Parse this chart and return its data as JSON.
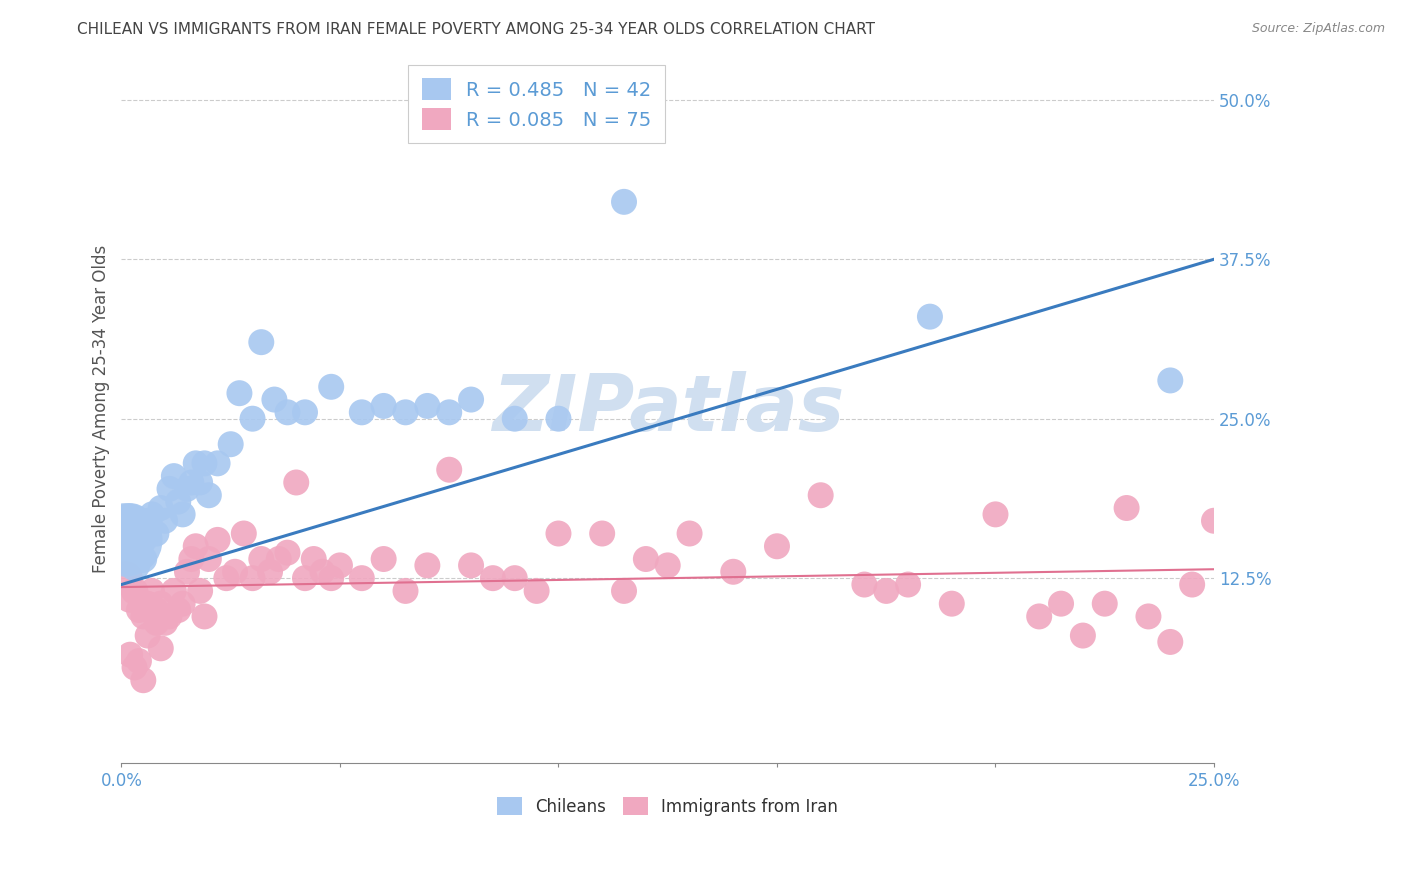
{
  "title": "CHILEAN VS IMMIGRANTS FROM IRAN FEMALE POVERTY AMONG 25-34 YEAR OLDS CORRELATION CHART",
  "source": "Source: ZipAtlas.com",
  "ylabel": "Female Poverty Among 25-34 Year Olds",
  "xlim": [
    0.0,
    0.25
  ],
  "ylim": [
    -0.02,
    0.535
  ],
  "xticks": [
    0.0,
    0.05,
    0.1,
    0.15,
    0.2,
    0.25
  ],
  "xtick_labels_show": {
    "0.0": "0.0%",
    "0.25": "25.0%"
  },
  "yticks": [
    0.125,
    0.25,
    0.375,
    0.5
  ],
  "ytick_labels": [
    "12.5%",
    "25.0%",
    "37.5%",
    "50.0%"
  ],
  "legend_entries": [
    {
      "label": "R = 0.485   N = 42",
      "color": "#a8c8f0"
    },
    {
      "label": "R = 0.085   N = 75",
      "color": "#f0a8c0"
    }
  ],
  "chilean_color": "#a8c8f0",
  "iran_color": "#f0a8c0",
  "blue_line_color": "#3a7bbf",
  "pink_line_color": "#e07090",
  "watermark": "ZIPatlas",
  "watermark_color": "#d0dff0",
  "background_color": "#ffffff",
  "grid_color": "#cccccc",
  "title_color": "#444444",
  "axis_label_color": "#555555",
  "tick_label_color": "#5b9bd5",
  "source_color": "#888888",
  "blue_line_x": [
    0.0,
    0.25
  ],
  "blue_line_y": [
    0.12,
    0.375
  ],
  "pink_line_x": [
    0.0,
    0.25
  ],
  "pink_line_y": [
    0.118,
    0.132
  ],
  "chileans_x": [
    0.001,
    0.002,
    0.003,
    0.003,
    0.004,
    0.005,
    0.005,
    0.006,
    0.007,
    0.008,
    0.009,
    0.01,
    0.011,
    0.012,
    0.013,
    0.014,
    0.015,
    0.016,
    0.017,
    0.018,
    0.019,
    0.02,
    0.022,
    0.025,
    0.027,
    0.03,
    0.032,
    0.035,
    0.038,
    0.042,
    0.048,
    0.055,
    0.06,
    0.065,
    0.07,
    0.075,
    0.08,
    0.09,
    0.1,
    0.115,
    0.185,
    0.24
  ],
  "chileans_y": [
    0.155,
    0.165,
    0.145,
    0.135,
    0.16,
    0.155,
    0.14,
    0.17,
    0.175,
    0.16,
    0.18,
    0.17,
    0.195,
    0.205,
    0.185,
    0.175,
    0.195,
    0.2,
    0.215,
    0.2,
    0.215,
    0.19,
    0.215,
    0.23,
    0.27,
    0.25,
    0.31,
    0.265,
    0.255,
    0.255,
    0.275,
    0.255,
    0.26,
    0.255,
    0.26,
    0.255,
    0.265,
    0.25,
    0.25,
    0.42,
    0.33,
    0.28
  ],
  "chileans_size": [
    280,
    120,
    60,
    50,
    50,
    40,
    40,
    35,
    35,
    35,
    35,
    35,
    35,
    35,
    35,
    35,
    35,
    35,
    35,
    35,
    35,
    35,
    35,
    35,
    35,
    35,
    35,
    35,
    35,
    35,
    35,
    35,
    35,
    35,
    35,
    35,
    35,
    35,
    35,
    35,
    35,
    35
  ],
  "iran_x": [
    0.001,
    0.002,
    0.003,
    0.004,
    0.005,
    0.006,
    0.007,
    0.008,
    0.009,
    0.01,
    0.011,
    0.012,
    0.013,
    0.014,
    0.015,
    0.016,
    0.017,
    0.018,
    0.019,
    0.02,
    0.022,
    0.024,
    0.026,
    0.028,
    0.03,
    0.032,
    0.034,
    0.036,
    0.038,
    0.04,
    0.042,
    0.044,
    0.046,
    0.048,
    0.05,
    0.055,
    0.06,
    0.065,
    0.07,
    0.075,
    0.08,
    0.085,
    0.09,
    0.095,
    0.1,
    0.11,
    0.115,
    0.12,
    0.125,
    0.13,
    0.14,
    0.15,
    0.16,
    0.17,
    0.175,
    0.18,
    0.19,
    0.2,
    0.21,
    0.215,
    0.22,
    0.225,
    0.23,
    0.235,
    0.24,
    0.245,
    0.25,
    0.002,
    0.003,
    0.004,
    0.005,
    0.006,
    0.007,
    0.008,
    0.009
  ],
  "iran_y": [
    0.125,
    0.11,
    0.115,
    0.1,
    0.095,
    0.105,
    0.115,
    0.1,
    0.105,
    0.09,
    0.095,
    0.115,
    0.1,
    0.105,
    0.13,
    0.14,
    0.15,
    0.115,
    0.095,
    0.14,
    0.155,
    0.125,
    0.13,
    0.16,
    0.125,
    0.14,
    0.13,
    0.14,
    0.145,
    0.2,
    0.125,
    0.14,
    0.13,
    0.125,
    0.135,
    0.125,
    0.14,
    0.115,
    0.135,
    0.21,
    0.135,
    0.125,
    0.125,
    0.115,
    0.16,
    0.16,
    0.115,
    0.14,
    0.135,
    0.16,
    0.13,
    0.15,
    0.19,
    0.12,
    0.115,
    0.12,
    0.105,
    0.175,
    0.095,
    0.105,
    0.08,
    0.105,
    0.18,
    0.095,
    0.075,
    0.12,
    0.17,
    0.065,
    0.055,
    0.06,
    0.045,
    0.08,
    0.1,
    0.09,
    0.07
  ],
  "iran_size": [
    60,
    50,
    40,
    35,
    35,
    35,
    35,
    35,
    35,
    35,
    35,
    35,
    35,
    35,
    35,
    35,
    35,
    35,
    35,
    35,
    35,
    35,
    35,
    35,
    35,
    35,
    35,
    35,
    35,
    35,
    35,
    35,
    35,
    35,
    35,
    35,
    35,
    35,
    35,
    35,
    35,
    35,
    35,
    35,
    35,
    35,
    35,
    35,
    35,
    35,
    35,
    35,
    35,
    35,
    35,
    35,
    35,
    35,
    35,
    35,
    35,
    35,
    35,
    35,
    35,
    35,
    35,
    35,
    35,
    35,
    35,
    35,
    35,
    35,
    35
  ]
}
